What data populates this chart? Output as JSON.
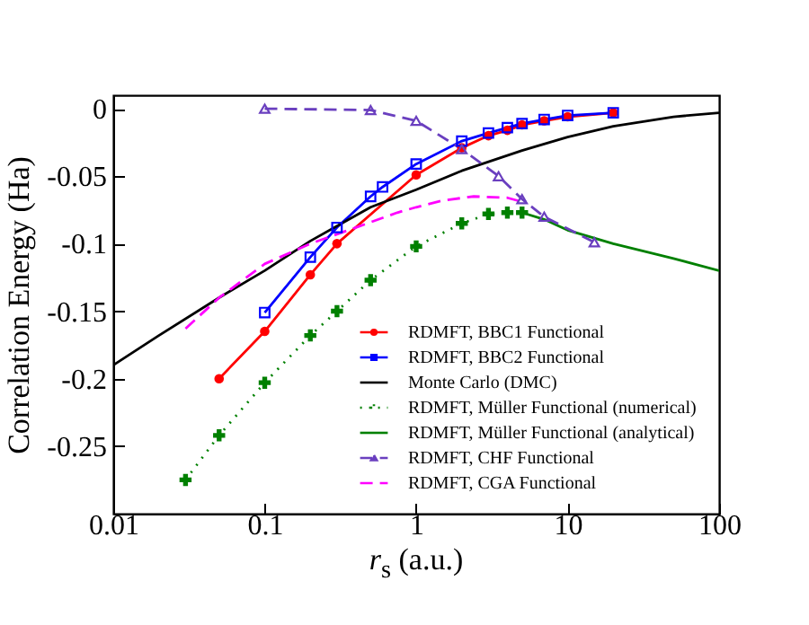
{
  "chart_data": {
    "type": "line",
    "xlabel": "r$_{s}$  (a.u.)",
    "ylabel": "Correlation Energy (Ha)",
    "log": "x",
    "xlim": [
      0.01,
      100
    ],
    "xticks": [
      0.01,
      0.1,
      1,
      10,
      100
    ],
    "ylim": [
      -0.3,
      0.01
    ],
    "yticks": [
      0,
      -0.05,
      -0.1,
      -0.15,
      -0.2,
      -0.25
    ],
    "grid": false,
    "legend": "bottom right",
    "series": [
      {
        "name": "RDMFT, BBC1 Functional",
        "color": "#ff0000",
        "marker": "circle",
        "line_style": "solid",
        "x": [
          0.05,
          0.1,
          0.2,
          0.3,
          1,
          2,
          3,
          4,
          5,
          7,
          10,
          20
        ],
        "values": [
          -0.2,
          -0.165,
          -0.123,
          -0.1,
          -0.049,
          -0.029,
          -0.02,
          -0.016,
          -0.012,
          -0.009,
          -0.006,
          -0.003
        ]
      },
      {
        "name": "RDMFT, BBC2 Functional",
        "color": "#0000ff",
        "marker": "square",
        "line_style": "solid",
        "x": [
          0.1,
          0.2,
          0.3,
          0.5,
          0.6,
          1,
          2,
          3,
          4,
          5,
          7,
          10,
          20
        ],
        "values": [
          -0.151,
          -0.11,
          -0.088,
          -0.065,
          -0.058,
          -0.041,
          -0.024,
          -0.018,
          -0.014,
          -0.011,
          -0.008,
          -0.005,
          -0.003
        ]
      },
      {
        "name": "Monte Carlo (DMC)",
        "color": "#000000",
        "marker": "none",
        "line_style": "solid",
        "x": [
          0.01,
          0.02,
          0.05,
          0.1,
          0.2,
          0.5,
          1,
          2,
          5,
          10,
          20,
          50,
          100
        ],
        "values": [
          -0.19,
          -0.168,
          -0.14,
          -0.12,
          -0.098,
          -0.073,
          -0.06,
          -0.046,
          -0.031,
          -0.021,
          -0.013,
          -0.006,
          -0.003
        ]
      },
      {
        "name": "RDMFT, Müller Functional (numerical)",
        "color": "#008000",
        "marker": "cross",
        "line_style": "dotted",
        "x": [
          0.03,
          0.05,
          0.1,
          0.2,
          0.3,
          0.5,
          1,
          2,
          3,
          4,
          5
        ],
        "values": [
          -0.275,
          -0.242,
          -0.203,
          -0.168,
          -0.15,
          -0.127,
          -0.102,
          -0.085,
          -0.078,
          -0.077,
          -0.077
        ]
      },
      {
        "name": "RDMFT, Müller Functional (analytical)",
        "color": "#008000",
        "marker": "none",
        "line_style": "solid",
        "x": [
          5,
          7,
          10,
          20,
          50,
          100
        ],
        "values": [
          -0.077,
          -0.082,
          -0.09,
          -0.1,
          -0.111,
          -0.12
        ]
      },
      {
        "name": "RDMFT, CHF Functional",
        "color": "#6a3fbf",
        "marker": "triangle",
        "line_style": "dashed",
        "x": [
          0.1,
          0.5,
          1,
          2,
          3.5,
          5,
          7,
          15
        ],
        "values": [
          0,
          -0.001,
          -0.009,
          -0.03,
          -0.05,
          -0.067,
          -0.08,
          -0.099
        ]
      },
      {
        "name": "RDMFT, CGA Functional",
        "color": "#ff00ff",
        "marker": "none",
        "line_style": "dashed",
        "x": [
          0.03,
          0.05,
          0.1,
          0.2,
          0.4,
          0.75,
          1,
          1.5,
          2.4,
          4,
          5
        ],
        "values": [
          -0.163,
          -0.14,
          -0.115,
          -0.1,
          -0.088,
          -0.077,
          -0.073,
          -0.068,
          -0.065,
          -0.066,
          -0.069
        ]
      }
    ]
  }
}
